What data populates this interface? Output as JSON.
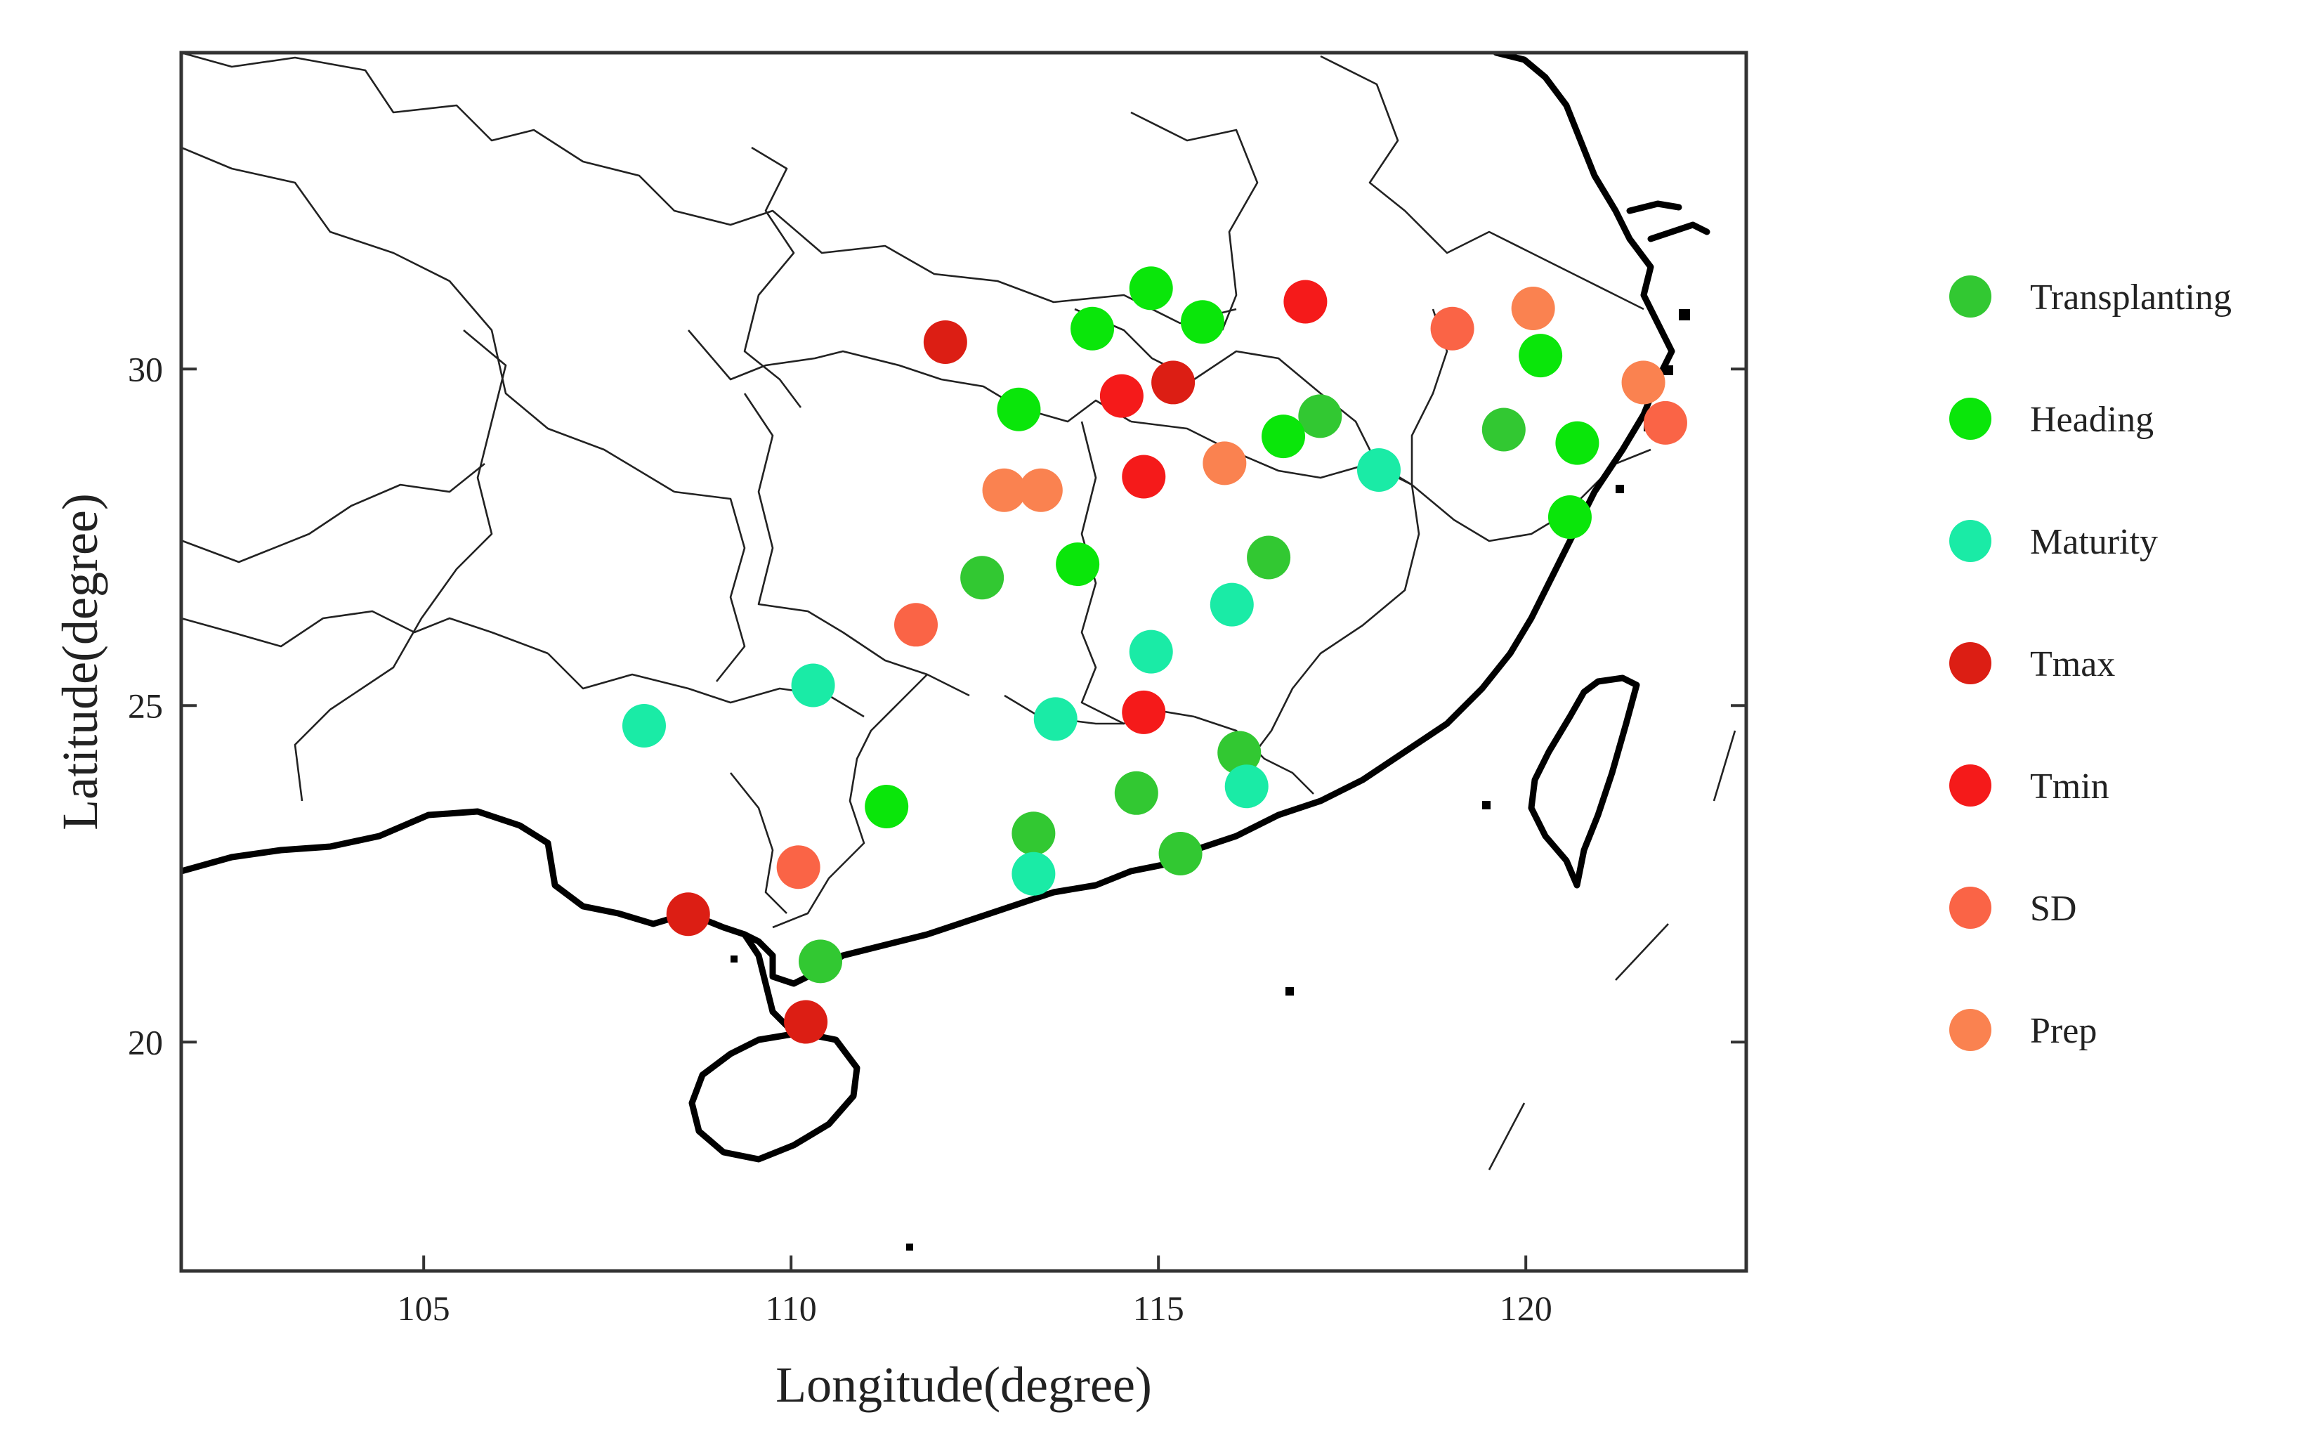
{
  "chart_data": {
    "type": "scatter",
    "xlabel": "Longitude(degree)",
    "ylabel": "Latitude(degree)",
    "xlim": [
      101.7,
      123
    ],
    "ylim": [
      16.6,
      34.7
    ],
    "x_ticks": [
      105,
      110,
      115,
      120
    ],
    "y_ticks": [
      20,
      25,
      30
    ],
    "grid": false,
    "legend_position": "right",
    "series": [
      {
        "name": "Transplanting",
        "color": "#32c832",
        "points": [
          [
            112.6,
            26.9
          ],
          [
            116.5,
            27.2
          ],
          [
            117.2,
            29.3
          ],
          [
            119.7,
            29.1
          ],
          [
            116.1,
            24.3
          ],
          [
            114.7,
            23.7
          ],
          [
            113.3,
            23.1
          ],
          [
            115.3,
            22.8
          ],
          [
            110.4,
            21.2
          ]
        ]
      },
      {
        "name": "Heading",
        "color": "#0ae60a",
        "points": [
          [
            114.1,
            30.6
          ],
          [
            114.9,
            31.2
          ],
          [
            115.6,
            30.7
          ],
          [
            113.1,
            29.4
          ],
          [
            116.7,
            29.0
          ],
          [
            120.2,
            30.2
          ],
          [
            120.7,
            28.9
          ],
          [
            120.6,
            27.8
          ],
          [
            113.9,
            27.1
          ],
          [
            111.3,
            23.5
          ]
        ]
      },
      {
        "name": "Maturity",
        "color": "#1aeba6",
        "points": [
          [
            118.0,
            28.5
          ],
          [
            116.0,
            26.5
          ],
          [
            114.9,
            25.8
          ],
          [
            113.6,
            24.8
          ],
          [
            110.3,
            25.3
          ],
          [
            108.0,
            24.7
          ],
          [
            116.2,
            23.8
          ],
          [
            113.3,
            22.5
          ]
        ]
      },
      {
        "name": "Tmax",
        "color": "#dc1e14",
        "points": [
          [
            112.1,
            30.4
          ],
          [
            115.2,
            29.8
          ],
          [
            108.6,
            21.9
          ],
          [
            110.2,
            20.3
          ]
        ]
      },
      {
        "name": "Tmin",
        "color": "#f51a1a",
        "points": [
          [
            117.0,
            31.0
          ],
          [
            114.5,
            29.6
          ],
          [
            114.8,
            28.4
          ],
          [
            114.8,
            24.9
          ]
        ]
      },
      {
        "name": "SD",
        "color": "#fa6446",
        "points": [
          [
            119.0,
            30.6
          ],
          [
            121.9,
            29.2
          ],
          [
            110.1,
            22.6
          ],
          [
            111.7,
            26.2
          ]
        ]
      },
      {
        "name": "Prep",
        "color": "#fa8250",
        "points": [
          [
            120.1,
            30.9
          ],
          [
            121.6,
            29.8
          ],
          [
            115.9,
            28.6
          ],
          [
            112.9,
            28.2
          ],
          [
            113.4,
            28.2
          ]
        ]
      }
    ]
  }
}
